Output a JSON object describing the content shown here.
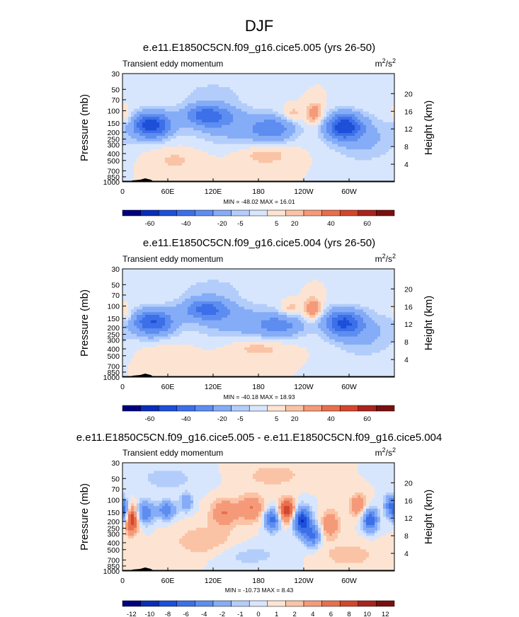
{
  "title": "DJF",
  "chart_data": [
    {
      "type": "contour",
      "title": "e.e11.E1850C5CN.f09_g16.cice5.005 (yrs 26-50)",
      "left_string": "Transient eddy momentum",
      "units_base": "m",
      "units_sup1": "2",
      "units_mid": "/s",
      "units_sup2": "2",
      "ylabel": "Pressure (mb)",
      "y2label": "Height (km)",
      "x_ticks": [
        "0",
        "60E",
        "120E",
        "180",
        "120W",
        "60W"
      ],
      "x_tick_values": [
        0,
        60,
        120,
        180,
        240,
        300
      ],
      "xlim": [
        0,
        360
      ],
      "pressure_ticks": [
        "30",
        "50",
        "70",
        "100",
        "150",
        "200",
        "250",
        "300",
        "400",
        "500",
        "700",
        "850",
        "1000"
      ],
      "pressure_values": [
        30,
        50,
        70,
        100,
        150,
        200,
        250,
        300,
        400,
        500,
        700,
        850,
        1000
      ],
      "ylim": [
        1000,
        30
      ],
      "height_ticks": [
        "20",
        "16",
        "12",
        "8",
        "4"
      ],
      "height_values": [
        20,
        16,
        12,
        8,
        4
      ],
      "min_max": "MIN = -48.02  MAX =  16.01",
      "colorbar_labels": [
        "-60",
        "-40",
        "-20",
        "-5",
        "5",
        "20",
        "40",
        "60"
      ],
      "blobs": [
        {
          "lon": 38,
          "p": 160,
          "amp": -48,
          "slon": 18,
          "sp": 0.3
        },
        {
          "lon": 112,
          "p": 115,
          "amp": -32,
          "slon": 22,
          "sp": 0.25
        },
        {
          "lon": 150,
          "p": 170,
          "amp": -14,
          "slon": 42,
          "sp": 0.4
        },
        {
          "lon": 200,
          "p": 180,
          "amp": -22,
          "slon": 20,
          "sp": 0.28
        },
        {
          "lon": 293,
          "p": 165,
          "amp": -44,
          "slon": 17,
          "sp": 0.3
        },
        {
          "lon": 255,
          "p": 110,
          "amp": 16,
          "slon": 8,
          "sp": 0.25
        },
        {
          "lon": 225,
          "p": 110,
          "amp": 9,
          "slon": 10,
          "sp": 0.18
        },
        {
          "lon": 70,
          "p": 500,
          "amp": 6,
          "slon": 25,
          "sp": 0.3
        },
        {
          "lon": 190,
          "p": 420,
          "amp": 8,
          "slon": 25,
          "sp": 0.25
        },
        {
          "lon": 120,
          "p": 55,
          "amp": -6,
          "slon": 40,
          "sp": 0.35
        },
        {
          "lon": 320,
          "p": 250,
          "amp": -12,
          "slon": 30,
          "sp": 0.5
        },
        {
          "lon": 5,
          "p": 120,
          "amp": 8,
          "slon": 6,
          "sp": 0.2
        }
      ]
    },
    {
      "type": "contour",
      "title": "e.e11.E1850C5CN.f09_g16.cice5.004 (yrs 26-50)",
      "left_string": "Transient eddy momentum",
      "units_base": "m",
      "units_sup1": "2",
      "units_mid": "/s",
      "units_sup2": "2",
      "ylabel": "Pressure (mb)",
      "y2label": "Height (km)",
      "x_ticks": [
        "0",
        "60E",
        "120E",
        "180",
        "120W",
        "60W"
      ],
      "x_tick_values": [
        0,
        60,
        120,
        180,
        240,
        300
      ],
      "xlim": [
        0,
        360
      ],
      "pressure_ticks": [
        "30",
        "50",
        "70",
        "100",
        "150",
        "200",
        "250",
        "300",
        "400",
        "500",
        "700",
        "850",
        "1000"
      ],
      "pressure_values": [
        30,
        50,
        70,
        100,
        150,
        200,
        250,
        300,
        400,
        500,
        700,
        850,
        1000
      ],
      "ylim": [
        1000,
        30
      ],
      "height_ticks": [
        "20",
        "16",
        "12",
        "8",
        "4"
      ],
      "height_values": [
        20,
        16,
        12,
        8,
        4
      ],
      "min_max": "MIN = -40.18  MAX =  18.93",
      "colorbar_labels": [
        "-60",
        "-40",
        "-20",
        "-5",
        "5",
        "20",
        "40",
        "60"
      ],
      "blobs": [
        {
          "lon": 40,
          "p": 170,
          "amp": -40,
          "slon": 20,
          "sp": 0.3
        },
        {
          "lon": 110,
          "p": 110,
          "amp": -30,
          "slon": 22,
          "sp": 0.25
        },
        {
          "lon": 155,
          "p": 170,
          "amp": -14,
          "slon": 42,
          "sp": 0.4
        },
        {
          "lon": 210,
          "p": 190,
          "amp": -20,
          "slon": 22,
          "sp": 0.28
        },
        {
          "lon": 292,
          "p": 170,
          "amp": -38,
          "slon": 18,
          "sp": 0.3
        },
        {
          "lon": 252,
          "p": 110,
          "amp": 19,
          "slon": 8,
          "sp": 0.25
        },
        {
          "lon": 222,
          "p": 110,
          "amp": 10,
          "slon": 10,
          "sp": 0.18
        },
        {
          "lon": 180,
          "p": 380,
          "amp": 8,
          "slon": 28,
          "sp": 0.25
        },
        {
          "lon": 120,
          "p": 55,
          "amp": -6,
          "slon": 40,
          "sp": 0.35
        },
        {
          "lon": 320,
          "p": 250,
          "amp": -12,
          "slon": 30,
          "sp": 0.5
        },
        {
          "lon": 5,
          "p": 130,
          "amp": 9,
          "slon": 6,
          "sp": 0.2
        },
        {
          "lon": 60,
          "p": 550,
          "amp": 5,
          "slon": 25,
          "sp": 0.3
        }
      ]
    },
    {
      "type": "contour",
      "title": "e.e11.E1850C5CN.f09_g16.cice5.005 - e.e11.E1850C5CN.f09_g16.cice5.004",
      "left_string": "Transient eddy momentum",
      "units_base": "m",
      "units_sup1": "2",
      "units_mid": "/s",
      "units_sup2": "2",
      "ylabel": "Pressure (mb)",
      "y2label": "Height (km)",
      "x_ticks": [
        "0",
        "60E",
        "120E",
        "180",
        "120W",
        "60W"
      ],
      "x_tick_values": [
        0,
        60,
        120,
        180,
        240,
        300
      ],
      "xlim": [
        0,
        360
      ],
      "pressure_ticks": [
        "30",
        "50",
        "70",
        "100",
        "150",
        "200",
        "250",
        "300",
        "400",
        "500",
        "700",
        "850",
        "1000"
      ],
      "pressure_values": [
        30,
        50,
        70,
        100,
        150,
        200,
        250,
        300,
        400,
        500,
        700,
        850,
        1000
      ],
      "ylim": [
        1000,
        30
      ],
      "height_ticks": [
        "20",
        "16",
        "12",
        "8",
        "4"
      ],
      "height_values": [
        20,
        16,
        12,
        8,
        4
      ],
      "min_max": "MIN = -10.73  MAX =  8.43",
      "colorbar_labels": [
        "-12",
        "-10",
        "-8",
        "-6",
        "-4",
        "-2",
        "-1",
        "0",
        "1",
        "2",
        "4",
        "6",
        "8",
        "10",
        "12"
      ],
      "blobs": [
        {
          "lon": 12,
          "p": 190,
          "amp": 8,
          "slon": 6,
          "sp": 0.3
        },
        {
          "lon": 2,
          "p": 150,
          "amp": -6,
          "slon": 5,
          "sp": 0.25
        },
        {
          "lon": 30,
          "p": 150,
          "amp": -6,
          "slon": 8,
          "sp": 0.25
        },
        {
          "lon": 58,
          "p": 140,
          "amp": -6,
          "slon": 8,
          "sp": 0.2
        },
        {
          "lon": 85,
          "p": 110,
          "amp": -4,
          "slon": 6,
          "sp": 0.2
        },
        {
          "lon": 135,
          "p": 150,
          "amp": 4,
          "slon": 12,
          "sp": 0.3
        },
        {
          "lon": 170,
          "p": 130,
          "amp": 4,
          "slon": 12,
          "sp": 0.3
        },
        {
          "lon": 198,
          "p": 190,
          "amp": -7,
          "slon": 7,
          "sp": 0.25
        },
        {
          "lon": 218,
          "p": 140,
          "amp": 8,
          "slon": 7,
          "sp": 0.25
        },
        {
          "lon": 238,
          "p": 200,
          "amp": -10,
          "slon": 8,
          "sp": 0.3
        },
        {
          "lon": 252,
          "p": 320,
          "amp": -6,
          "slon": 7,
          "sp": 0.25
        },
        {
          "lon": 275,
          "p": 220,
          "amp": 4,
          "slon": 8,
          "sp": 0.3
        },
        {
          "lon": 312,
          "p": 120,
          "amp": 4,
          "slon": 8,
          "sp": 0.25
        },
        {
          "lon": 328,
          "p": 190,
          "amp": -8,
          "slon": 7,
          "sp": 0.25
        },
        {
          "lon": 355,
          "p": 120,
          "amp": -5,
          "slon": 6,
          "sp": 0.25
        },
        {
          "lon": 110,
          "p": 400,
          "amp": 2,
          "slon": 30,
          "sp": 0.4
        },
        {
          "lon": 160,
          "p": 600,
          "amp": -1.5,
          "slon": 40,
          "sp": 0.3
        },
        {
          "lon": 300,
          "p": 600,
          "amp": 1.5,
          "slon": 30,
          "sp": 0.3
        },
        {
          "lon": 60,
          "p": 50,
          "amp": -1.5,
          "slon": 30,
          "sp": 0.3
        },
        {
          "lon": 200,
          "p": 45,
          "amp": 1.5,
          "slon": 30,
          "sp": 0.3
        }
      ]
    }
  ],
  "colors": {
    "diverging_12": [
      "#00007f",
      "#0a2db8",
      "#1d4fd8",
      "#3c6fe8",
      "#5d8df0",
      "#85acf6",
      "#b3cdfb",
      "#d8e6fd",
      "#fde4d2",
      "#fbc3a6",
      "#f59a79",
      "#e86f4e",
      "#d2472c",
      "#a8241c",
      "#7a0f0f"
    ],
    "land": "#000000"
  }
}
